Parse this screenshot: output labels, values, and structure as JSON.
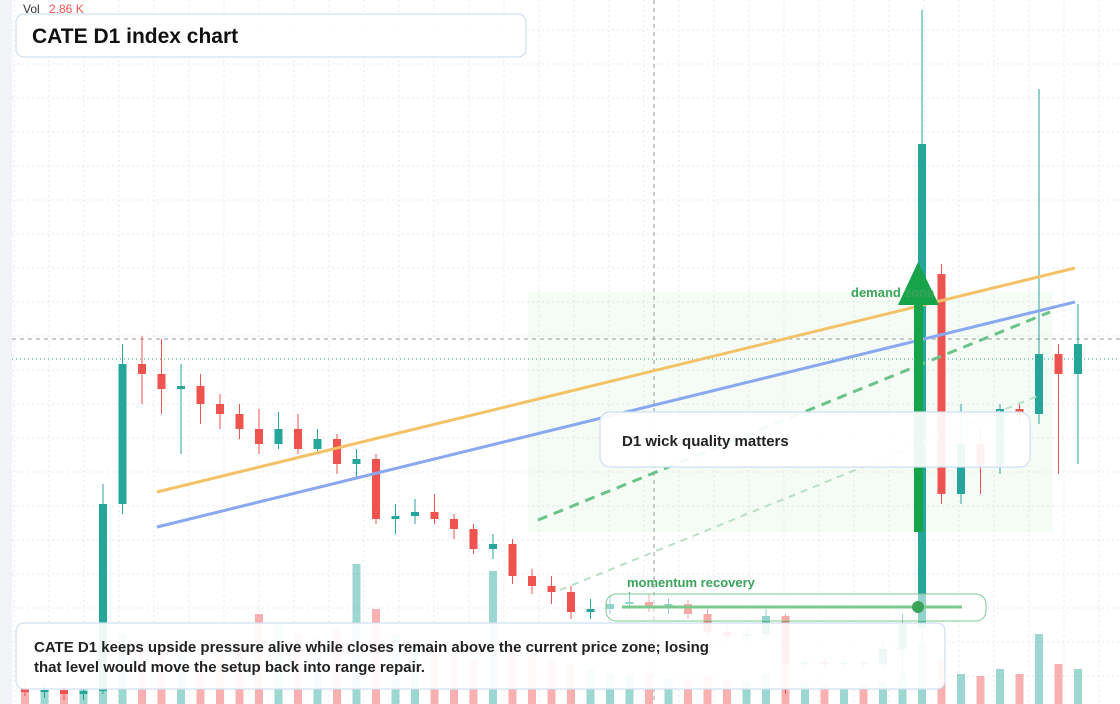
{
  "chart_data": {
    "type": "candlestick",
    "title": "CATE D1 index chart",
    "volume_label": "Vol",
    "volume_value": "2.86 K",
    "annotations": [
      "demand zone",
      "D1 wick quality matters",
      "momentum recovery"
    ],
    "note": "CATE D1 keeps upside pressure alive while closes remain above the current price zone; losing that level would move the setup back into range repair.",
    "open": [
      16,
      12,
      14,
      10,
      13,
      200,
      340,
      330,
      315,
      318,
      300,
      290,
      275,
      260,
      275,
      255,
      265,
      240,
      245,
      185,
      188,
      192,
      185,
      175,
      155,
      160,
      128,
      118,
      112,
      92,
      95,
      100,
      102,
      98,
      100,
      90,
      72,
      68,
      70,
      88,
      40,
      42,
      40,
      41,
      40,
      55,
      76,
      430,
      210,
      260,
      240,
      295,
      290,
      350,
      330
    ],
    "high": [
      22,
      20,
      18,
      16,
      220,
      360,
      368,
      365,
      340,
      330,
      310,
      300,
      295,
      292,
      290,
      275,
      270,
      255,
      250,
      200,
      205,
      210,
      190,
      180,
      170,
      165,
      135,
      128,
      118,
      105,
      108,
      112,
      110,
      106,
      104,
      95,
      78,
      76,
      95,
      90,
      46,
      46,
      45,
      44,
      62,
      90,
      694,
      440,
      300,
      275,
      300,
      300,
      615,
      360,
      400
    ],
    "low": [
      8,
      6,
      4,
      4,
      10,
      190,
      300,
      290,
      250,
      280,
      275,
      265,
      250,
      255,
      250,
      250,
      230,
      225,
      180,
      170,
      180,
      180,
      165,
      150,
      145,
      120,
      110,
      100,
      85,
      85,
      90,
      95,
      92,
      90,
      85,
      68,
      62,
      62,
      65,
      10,
      36,
      36,
      37,
      36,
      36,
      30,
      60,
      200,
      200,
      210,
      230,
      280,
      280,
      230,
      240
    ],
    "close": [
      12,
      14,
      10,
      13,
      200,
      340,
      330,
      315,
      318,
      300,
      290,
      275,
      260,
      275,
      255,
      265,
      240,
      245,
      185,
      188,
      192,
      185,
      175,
      155,
      160,
      128,
      118,
      112,
      92,
      95,
      100,
      102,
      98,
      100,
      90,
      72,
      68,
      70,
      88,
      40,
      42,
      40,
      41,
      40,
      55,
      80,
      560,
      210,
      260,
      240,
      295,
      290,
      350,
      330,
      360
    ],
    "volume": [
      14,
      12,
      10,
      16,
      110,
      70,
      60,
      55,
      50,
      45,
      48,
      60,
      90,
      80,
      70,
      65,
      75,
      140,
      95,
      70,
      60,
      55,
      50,
      45,
      133,
      60,
      50,
      45,
      40,
      35,
      30,
      28,
      30,
      26,
      25,
      28,
      24,
      22,
      30,
      40,
      20,
      18,
      16,
      18,
      22,
      30,
      60,
      45,
      30,
      28,
      35,
      30,
      70,
      40,
      35
    ],
    "ylim": [
      0,
      704
    ],
    "volume_ylim": [
      0,
      160
    ],
    "up_color": "#26a69a",
    "down_color": "#ef5350"
  }
}
